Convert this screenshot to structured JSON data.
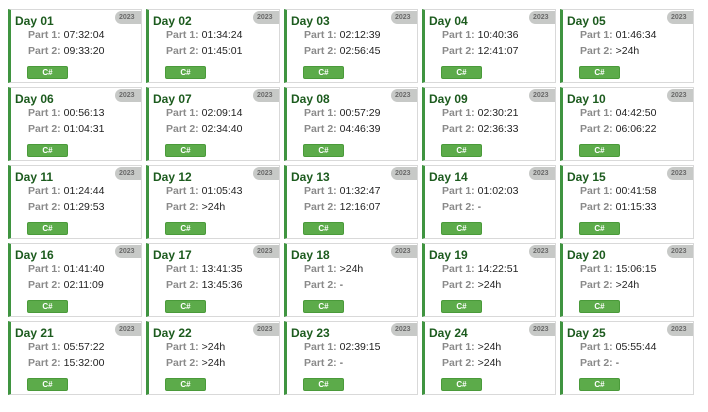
{
  "labels": {
    "part1": "Part 1:",
    "part2": "Part 2:"
  },
  "colors": {
    "accent_border": "#3f9440",
    "title": "#1c5b1e",
    "button": "#5cab4a",
    "badge": "#c7c9c7"
  },
  "days": [
    {
      "title": "Day 01",
      "year": "2023",
      "part1": "07:32:04",
      "part2": "09:33:20",
      "language": "C#"
    },
    {
      "title": "Day 02",
      "year": "2023",
      "part1": "01:34:24",
      "part2": "01:45:01",
      "language": "C#"
    },
    {
      "title": "Day 03",
      "year": "2023",
      "part1": "02:12:39",
      "part2": "02:56:45",
      "language": "C#"
    },
    {
      "title": "Day 04",
      "year": "2023",
      "part1": "10:40:36",
      "part2": "12:41:07",
      "language": "C#"
    },
    {
      "title": "Day 05",
      "year": "2023",
      "part1": "01:46:34",
      "part2": ">24h",
      "language": "C#"
    },
    {
      "title": "Day 06",
      "year": "2023",
      "part1": "00:56:13",
      "part2": "01:04:31",
      "language": "C#"
    },
    {
      "title": "Day 07",
      "year": "2023",
      "part1": "02:09:14",
      "part2": "02:34:40",
      "language": "C#"
    },
    {
      "title": "Day 08",
      "year": "2023",
      "part1": "00:57:29",
      "part2": "04:46:39",
      "language": "C#"
    },
    {
      "title": "Day 09",
      "year": "2023",
      "part1": "02:30:21",
      "part2": "02:36:33",
      "language": "C#"
    },
    {
      "title": "Day 10",
      "year": "2023",
      "part1": "04:42:50",
      "part2": "06:06:22",
      "language": "C#"
    },
    {
      "title": "Day 11",
      "year": "2023",
      "part1": "01:24:44",
      "part2": "01:29:53",
      "language": "C#"
    },
    {
      "title": "Day 12",
      "year": "2023",
      "part1": "01:05:43",
      "part2": ">24h",
      "language": "C#"
    },
    {
      "title": "Day 13",
      "year": "2023",
      "part1": "01:32:47",
      "part2": "12:16:07",
      "language": "C#"
    },
    {
      "title": "Day 14",
      "year": "2023",
      "part1": "01:02:03",
      "part2": "-",
      "language": "C#"
    },
    {
      "title": "Day 15",
      "year": "2023",
      "part1": "00:41:58",
      "part2": "01:15:33",
      "language": "C#"
    },
    {
      "title": "Day 16",
      "year": "2023",
      "part1": "01:41:40",
      "part2": "02:11:09",
      "language": "C#"
    },
    {
      "title": "Day 17",
      "year": "2023",
      "part1": "13:41:35",
      "part2": "13:45:36",
      "language": "C#"
    },
    {
      "title": "Day 18",
      "year": "2023",
      "part1": ">24h",
      "part2": "-",
      "language": "C#"
    },
    {
      "title": "Day 19",
      "year": "2023",
      "part1": "14:22:51",
      "part2": ">24h",
      "language": "C#"
    },
    {
      "title": "Day 20",
      "year": "2023",
      "part1": "15:06:15",
      "part2": ">24h",
      "language": "C#"
    },
    {
      "title": "Day 21",
      "year": "2023",
      "part1": "05:57:22",
      "part2": "15:32:00",
      "language": "C#"
    },
    {
      "title": "Day 22",
      "year": "2023",
      "part1": ">24h",
      "part2": ">24h",
      "language": "C#"
    },
    {
      "title": "Day 23",
      "year": "2023",
      "part1": "02:39:15",
      "part2": "-",
      "language": "C#"
    },
    {
      "title": "Day 24",
      "year": "2023",
      "part1": ">24h",
      "part2": ">24h",
      "language": "C#"
    },
    {
      "title": "Day 25",
      "year": "2023",
      "part1": "05:55:44",
      "part2": "-",
      "language": "C#"
    }
  ]
}
